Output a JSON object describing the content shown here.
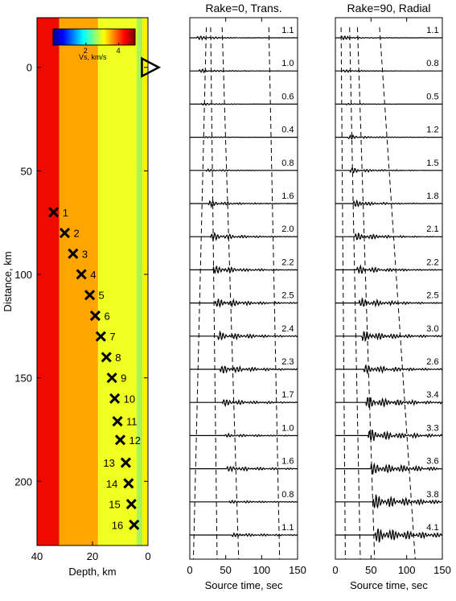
{
  "chart_data": [
    {
      "type": "heatmap",
      "panel": "velocity-model",
      "xlabel": "Depth, km",
      "ylabel": "Distance, km",
      "xlim": [
        40,
        0
      ],
      "ylim": [
        -24,
        231
      ],
      "xticks": [
        40,
        20,
        0
      ],
      "yticks": [
        0,
        50,
        100,
        150,
        200
      ],
      "colorbar": {
        "label": "Vs, km/s",
        "ticks": [
          2,
          4
        ],
        "range": [
          0,
          5
        ]
      },
      "layers": [
        {
          "from_depth": 40,
          "to_depth": 32,
          "vs": 4.7,
          "color": "#ee0a00"
        },
        {
          "from_depth": 32,
          "to_depth": 18,
          "vs": 4.1,
          "color": "#ffa500"
        },
        {
          "from_depth": 18,
          "to_depth": 4,
          "vs": 3.6,
          "color": "#efff1f"
        },
        {
          "from_depth": 4,
          "to_depth": 2,
          "vs": 3.1,
          "color": "#a8f25c"
        },
        {
          "from_depth": 2,
          "to_depth": 0,
          "vs": 3.3,
          "color": "#fff000"
        }
      ],
      "station": {
        "depth": -1,
        "distance": 0
      },
      "sources": [
        {
          "label": "1",
          "depth": 34,
          "distance": 70
        },
        {
          "label": "2",
          "depth": 30,
          "distance": 80
        },
        {
          "label": "3",
          "depth": 27,
          "distance": 90
        },
        {
          "label": "4",
          "depth": 24,
          "distance": 100
        },
        {
          "label": "5",
          "depth": 21,
          "distance": 110
        },
        {
          "label": "6",
          "depth": 19,
          "distance": 120
        },
        {
          "label": "7",
          "depth": 17,
          "distance": 130
        },
        {
          "label": "8",
          "depth": 15,
          "distance": 140
        },
        {
          "label": "9",
          "depth": 13,
          "distance": 150
        },
        {
          "label": "10",
          "depth": 12,
          "distance": 160
        },
        {
          "label": "11",
          "depth": 11,
          "distance": 171
        },
        {
          "label": "12",
          "depth": 10,
          "distance": 180
        },
        {
          "label": "13",
          "depth": 8,
          "distance": 191
        },
        {
          "label": "14",
          "depth": 7,
          "distance": 201
        },
        {
          "label": "15",
          "depth": 6,
          "distance": 211
        },
        {
          "label": "16",
          "depth": 5,
          "distance": 221
        }
      ]
    },
    {
      "type": "line",
      "panel": "seismograms",
      "title": "Rake=0, Trans.",
      "xlabel": "Source time, sec",
      "xlim": [
        0,
        150
      ],
      "xticks": [
        0,
        50,
        100,
        150
      ],
      "amplitudes": [
        "1.1",
        "1.0",
        "0.6",
        "0.4",
        "0.8",
        "1.6",
        "2.0",
        "2.2",
        "2.5",
        "2.4",
        "2.3",
        "1.7",
        "1.0",
        "1.6",
        "0.8",
        "1.1"
      ],
      "dashed_lines": [
        [
          23,
          5
        ],
        [
          29,
          38
        ],
        [
          45,
          68
        ],
        [
          110,
          125
        ]
      ]
    },
    {
      "type": "line",
      "panel": "seismograms",
      "title": "Rake=90, Radial",
      "xlabel": "Source time, sec",
      "xlim": [
        0,
        150
      ],
      "xticks": [
        0,
        50,
        100,
        150
      ],
      "amplitudes": [
        "1.1",
        "0.8",
        "0.5",
        "1.2",
        "1.5",
        "1.8",
        "2.1",
        "2.2",
        "2.5",
        "3.0",
        "2.6",
        "3.4",
        "3.3",
        "3.6",
        "3.8",
        "4.1"
      ],
      "dashed_lines": [
        [
          8,
          14
        ],
        [
          20,
          35
        ],
        [
          31,
          55
        ],
        [
          62,
          112
        ]
      ]
    }
  ]
}
